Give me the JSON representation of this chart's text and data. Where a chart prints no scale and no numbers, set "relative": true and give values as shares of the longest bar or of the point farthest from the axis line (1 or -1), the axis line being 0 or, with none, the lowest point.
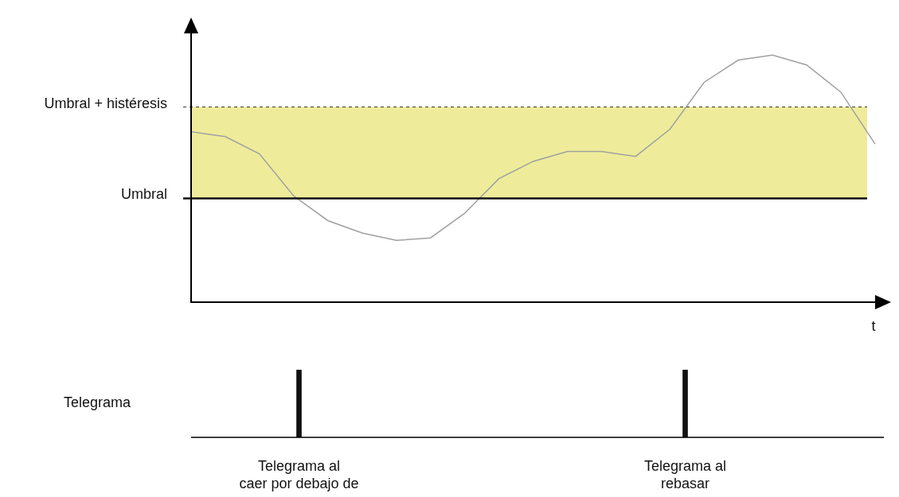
{
  "chart_data": [
    {
      "type": "line",
      "xlabel": "t",
      "relative": true,
      "color": "#a0a0a0",
      "grid": false,
      "legend": false,
      "categories": [
        null,
        null,
        null,
        null,
        null,
        null,
        null,
        null,
        null,
        null,
        null,
        null,
        null,
        null,
        null,
        null,
        null,
        null,
        null,
        null,
        null
      ],
      "values": [
        0.69,
        0.67,
        0.6,
        0.43,
        0.33,
        0.28,
        0.25,
        0.26,
        0.36,
        0.5,
        0.57,
        0.61,
        0.61,
        0.59,
        0.7,
        0.89,
        0.98,
        1,
        0.96,
        0.85,
        0.64
      ],
      "bands": [
        {
          "axis": "y",
          "from": 0.42,
          "to": 0.79,
          "color": "#eeec9a"
        }
      ],
      "ref_lines": [
        {
          "axis": "y",
          "value": 0.42,
          "label": "Umbral",
          "color": "#111111",
          "line_style": "solid"
        },
        {
          "axis": "y",
          "value": 0.79,
          "label": "Umbral + histéresis",
          "color": "#333333",
          "line_style": "dashed"
        }
      ]
    },
    {
      "type": "bar",
      "relative": true,
      "color": "#111111",
      "ylabel": "Telegrama",
      "grid": false,
      "legend": false,
      "categories": [
        null,
        null
      ],
      "values": [
        1,
        1
      ],
      "annotations": [
        "Telegrama al\ncaer por debajo de",
        "Telegrama al\nrebasar"
      ]
    }
  ]
}
